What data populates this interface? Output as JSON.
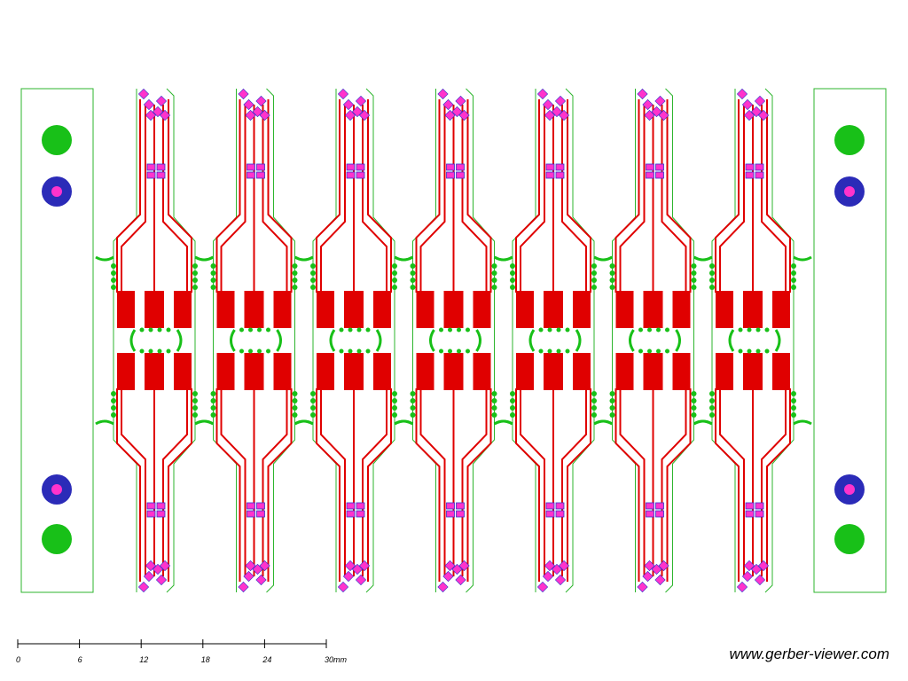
{
  "scale": {
    "ticks": [
      "0",
      "6",
      "12",
      "18",
      "24",
      "30mm"
    ]
  },
  "watermark": "www.gerber-viewer.com"
}
